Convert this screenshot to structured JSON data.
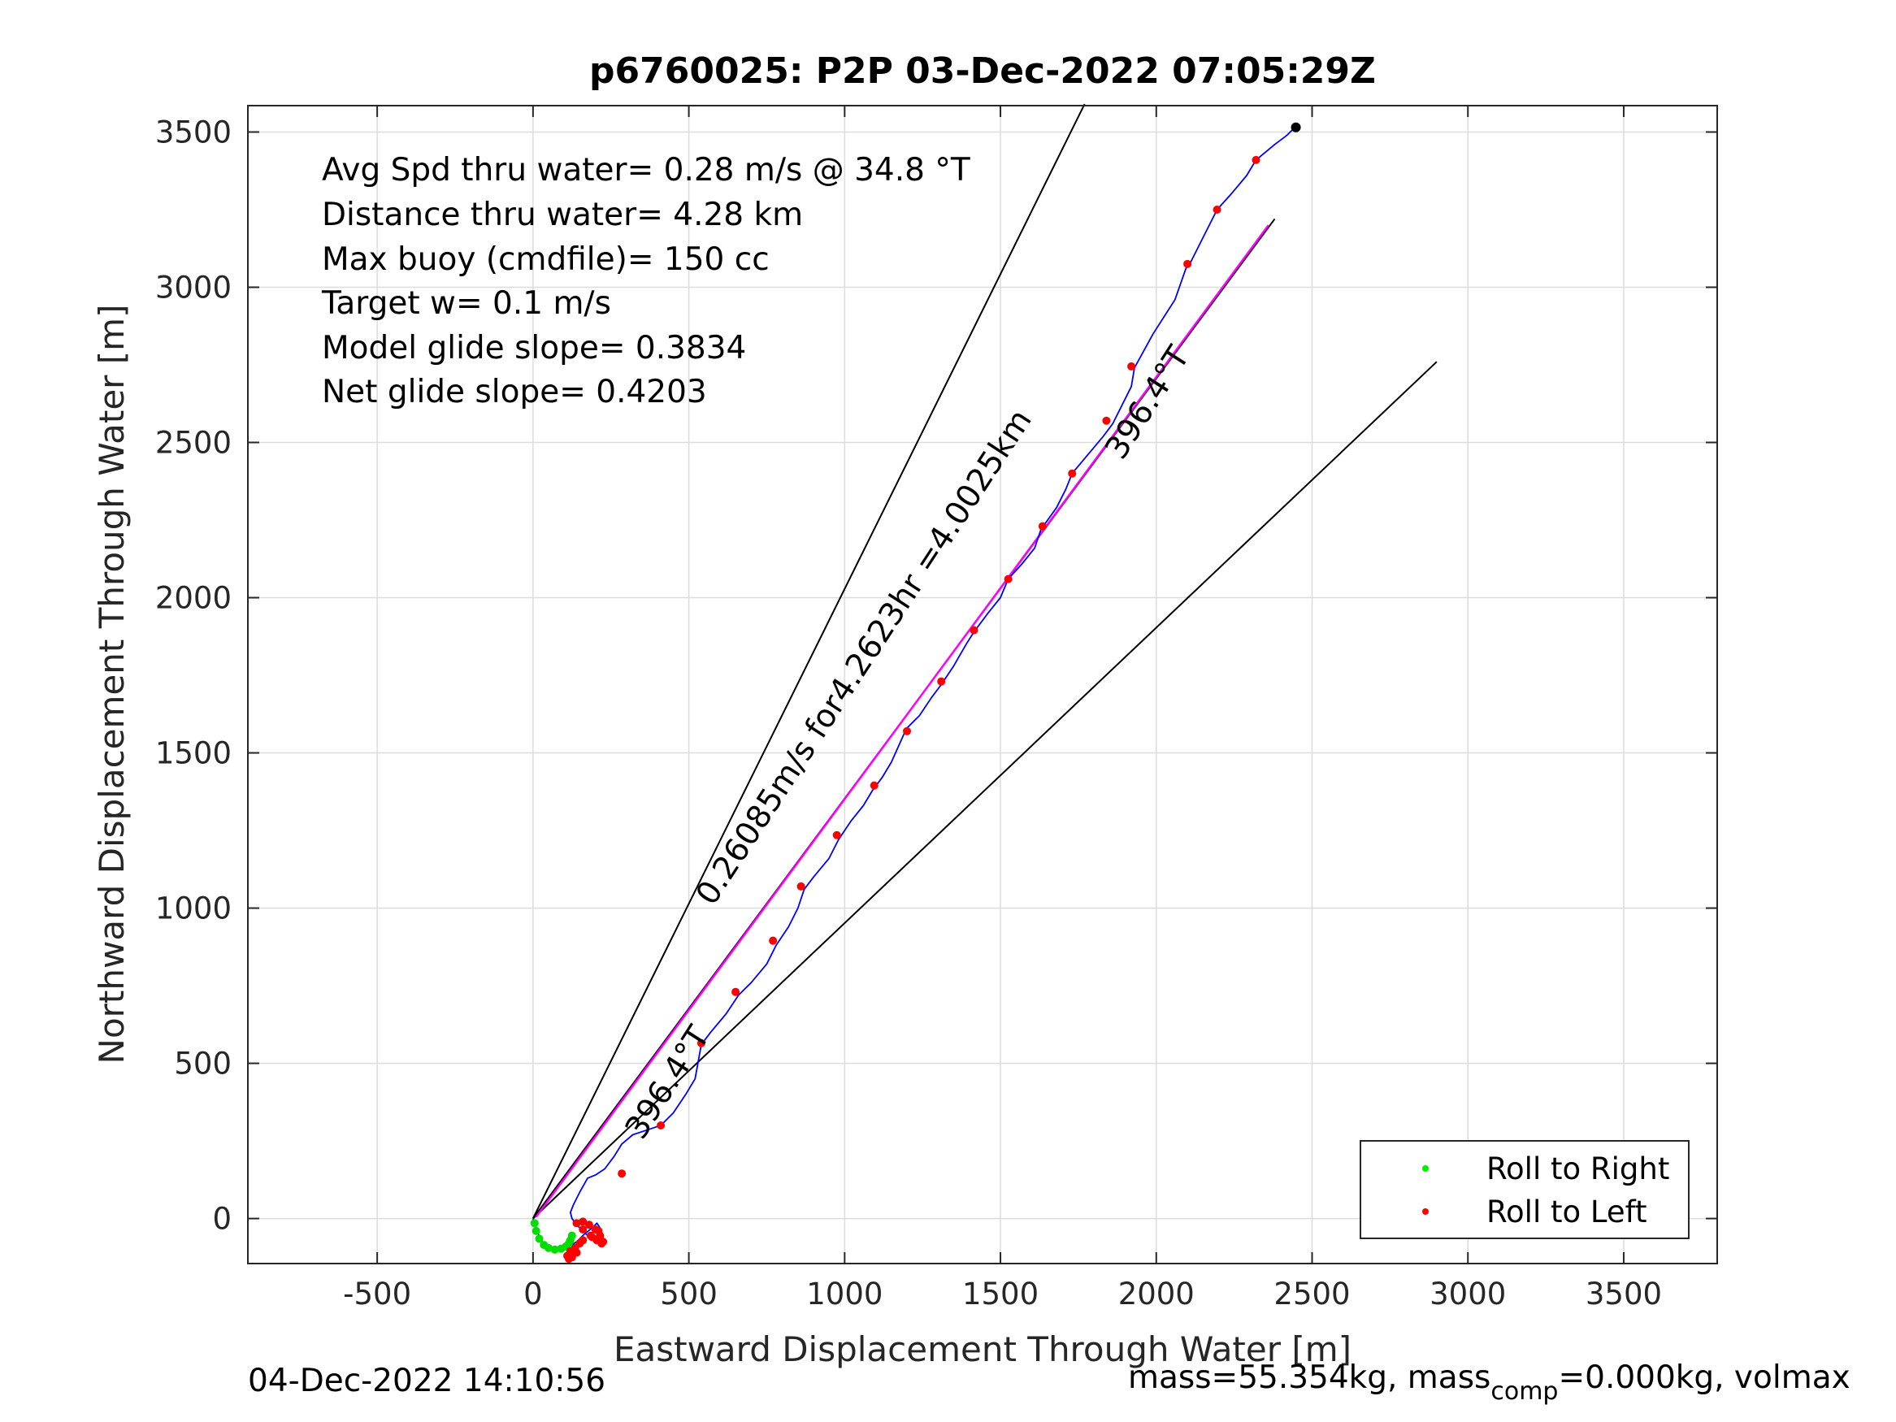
{
  "chart_data": {
    "type": "line",
    "title": "p6760025: P2P 03-Dec-2022 07:05:29Z",
    "xlabel": "Eastward Displacement Through Water [m]",
    "ylabel": "Northward Displacement Through Water [m]",
    "xlim": [
      -915,
      3800
    ],
    "ylim": [
      -145,
      3585
    ],
    "xticks": [
      -500,
      0,
      500,
      1000,
      1500,
      2000,
      2500,
      3000,
      3500
    ],
    "yticks": [
      0,
      500,
      1000,
      1500,
      2000,
      2500,
      3000,
      3500
    ],
    "grid": true,
    "colors": {
      "track": "#0000ff",
      "target": "#ff00ff",
      "right": "#00dd00",
      "left": "#ff0000",
      "cone": "#000000"
    },
    "annotations": [
      "Avg Spd thru water=  0.28 m/s @  34.8 °T",
      "Distance thru water=  4.28 km",
      "Max buoy (cmdfile)= 150 cc",
      "Target w= 0.1 m/s",
      "Model glide slope= 0.3834",
      "Net glide slope= 0.4203"
    ],
    "cone_lines": [
      {
        "x": [
          0,
          1770
        ],
        "y": [
          0,
          3590
        ]
      },
      {
        "x": [
          0,
          2380
        ],
        "y": [
          0,
          3220
        ]
      },
      {
        "x": [
          0,
          2900
        ],
        "y": [
          0,
          2760
        ]
      }
    ],
    "slope_labels": [
      {
        "text": "0.26085m/s for4.2623hr =4.0025km",
        "x": 1090,
        "y": 1790,
        "angle": -56.8
      },
      {
        "text": "396.4°T",
        "x": 2000,
        "y": 2610,
        "angle": -57.3
      },
      {
        "text": "396.4°T",
        "x": 460,
        "y": 420,
        "angle": -57.3
      }
    ],
    "target_line": {
      "x": [
        10,
        2360
      ],
      "y": [
        5,
        3200
      ]
    },
    "track": {
      "x": [
        0,
        10,
        25,
        50,
        80,
        110,
        140,
        165,
        190,
        205,
        215,
        225,
        220,
        200,
        180,
        160,
        140,
        125,
        120,
        130,
        150,
        175,
        200,
        230,
        260,
        285,
        320,
        380,
        410,
        450,
        490,
        520,
        540,
        570,
        620,
        660,
        700,
        750,
        780,
        820,
        850,
        870,
        900,
        950,
        980,
        1020,
        1060,
        1090,
        1120,
        1150,
        1190,
        1200,
        1240,
        1280,
        1310,
        1350,
        1390,
        1415,
        1460,
        1500,
        1525,
        1570,
        1610,
        1630,
        1680,
        1710,
        1730,
        1780,
        1830,
        1860,
        1890,
        1920,
        1930,
        1990,
        2060,
        2095,
        2110,
        2150,
        2195,
        2240,
        2290,
        2320,
        2380,
        2420,
        2450
      ],
      "y": [
        0,
        -30,
        -70,
        -95,
        -100,
        -95,
        -75,
        -50,
        -30,
        -15,
        -30,
        -60,
        -75,
        -75,
        -60,
        -40,
        -20,
        0,
        20,
        45,
        85,
        130,
        140,
        160,
        200,
        240,
        270,
        290,
        300,
        340,
        400,
        450,
        560,
        600,
        660,
        720,
        760,
        820,
        880,
        940,
        1000,
        1060,
        1100,
        1160,
        1220,
        1280,
        1330,
        1380,
        1420,
        1470,
        1560,
        1580,
        1620,
        1680,
        1720,
        1780,
        1850,
        1890,
        1950,
        2000,
        2060,
        2110,
        2160,
        2220,
        2290,
        2350,
        2400,
        2460,
        2520,
        2560,
        2620,
        2680,
        2740,
        2850,
        2960,
        3060,
        3080,
        3160,
        3250,
        3300,
        3360,
        3410,
        3460,
        3490,
        3520
      ]
    },
    "roll_right": {
      "x": [
        5,
        10,
        20,
        35,
        50,
        70,
        90,
        105,
        115,
        120,
        125
      ],
      "y": [
        -15,
        -40,
        -65,
        -85,
        -95,
        -100,
        -97,
        -90,
        -80,
        -70,
        -55
      ]
    },
    "roll_left": {
      "x": [
        140,
        160,
        180,
        200,
        215,
        225,
        220,
        205,
        185,
        160,
        140,
        125,
        115,
        110,
        120,
        135,
        150,
        160,
        190,
        210,
        285,
        410,
        540,
        650,
        770,
        860,
        975,
        1095,
        1200,
        1310,
        1415,
        1525,
        1635,
        1730,
        1840,
        1920,
        2100,
        2195,
        2320
      ],
      "y": [
        -15,
        -10,
        -20,
        -35,
        -55,
        -75,
        -80,
        -70,
        -55,
        -35,
        -110,
        -125,
        -130,
        -120,
        -105,
        -95,
        -80,
        -70,
        -60,
        -40,
        145,
        300,
        565,
        730,
        895,
        1070,
        1235,
        1395,
        1570,
        1730,
        1895,
        2060,
        2230,
        2400,
        2570,
        2745,
        3075,
        3250,
        3410
      ]
    },
    "end_point": {
      "x": 2448,
      "y": 3515
    }
  },
  "legend": {
    "items": [
      {
        "label": "Roll to Right",
        "color": "#00ee00"
      },
      {
        "label": "Roll to Left",
        "color": "#ff0000"
      }
    ],
    "placement": "bottom-right"
  },
  "footer": {
    "timestamp": "04-Dec-2022 14:10:56",
    "mass_prefix": "mass=55.354kg, mass",
    "mass_sub": "comp",
    "mass_suffix": "=0.000kg, volmax"
  }
}
